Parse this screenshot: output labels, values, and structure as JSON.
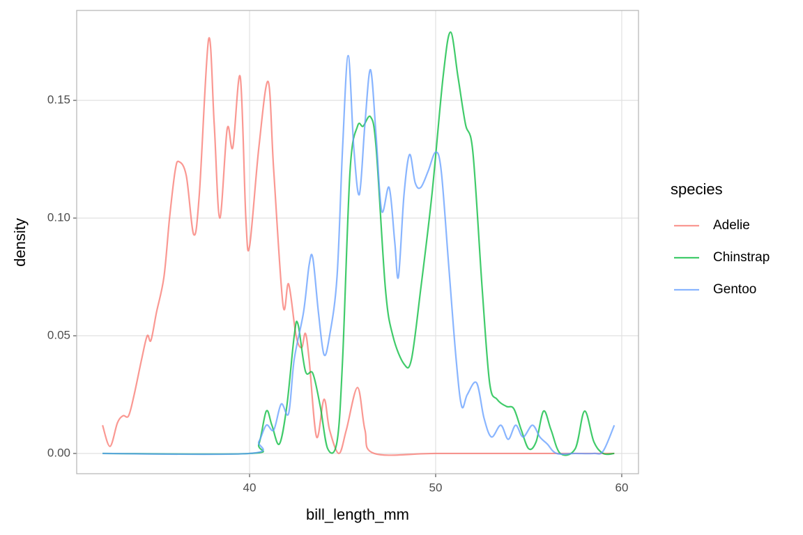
{
  "chart_data": {
    "type": "line",
    "x_label": "bill_length_mm",
    "y_label": "density",
    "legend_title": "species",
    "xlim": [
      30.71,
      60.9
    ],
    "ylim": [
      -0.0086,
      0.1882
    ],
    "xticks": [
      40,
      50,
      60
    ],
    "yticks": [
      {
        "value": 0,
        "label": "0.00"
      },
      {
        "value": 0.05,
        "label": "0.05"
      },
      {
        "value": 0.1,
        "label": "0.10"
      },
      {
        "value": 0.15,
        "label": "0.15"
      }
    ],
    "grid": true,
    "legend": "right",
    "series": [
      {
        "name": "Adelie",
        "color": "#F8766D",
        "x": [
          32.1,
          32.5,
          32.9,
          33.2,
          33.5,
          33.8,
          34.2,
          34.5,
          34.7,
          35.0,
          35.4,
          35.7,
          36.0,
          36.2,
          36.6,
          37.0,
          37.3,
          37.8,
          38.1,
          38.4,
          38.8,
          39.1,
          39.5,
          39.8,
          40.0,
          40.5,
          41.0,
          41.3,
          41.8,
          42.1,
          42.5,
          42.8,
          43.0,
          43.2,
          43.6,
          44.0,
          44.3,
          44.8,
          45.2,
          45.8,
          46.2,
          46.7,
          50,
          55,
          59.6
        ],
        "values": [
          0.012,
          0.003,
          0.013,
          0.016,
          0.016,
          0.025,
          0.04,
          0.05,
          0.048,
          0.06,
          0.075,
          0.1,
          0.12,
          0.124,
          0.118,
          0.093,
          0.11,
          0.176,
          0.14,
          0.1,
          0.138,
          0.13,
          0.16,
          0.1,
          0.088,
          0.13,
          0.158,
          0.12,
          0.063,
          0.072,
          0.05,
          0.045,
          0.051,
          0.04,
          0.007,
          0.023,
          0.01,
          0.0,
          0.01,
          0.028,
          0.01,
          0.0,
          0,
          0,
          0
        ]
      },
      {
        "name": "Chinstrap",
        "color": "#00BA38",
        "x": [
          32.1,
          40,
          40.5,
          40.9,
          41.2,
          41.6,
          42.0,
          42.4,
          42.6,
          43.0,
          43.4,
          43.8,
          44.2,
          44.7,
          45.0,
          45.4,
          45.8,
          46.1,
          46.5,
          46.8,
          47.3,
          47.7,
          48.3,
          48.7,
          49.2,
          49.8,
          50.4,
          50.8,
          51.2,
          51.6,
          52.0,
          52.5,
          52.9,
          53.3,
          53.8,
          54.2,
          54.6,
          55.0,
          55.4,
          55.8,
          56.2,
          56.7,
          57.5,
          58.0,
          58.5,
          59.0,
          59.6
        ],
        "values": [
          0,
          0,
          0.004,
          0.018,
          0.012,
          0.004,
          0.02,
          0.05,
          0.055,
          0.035,
          0.034,
          0.02,
          0.002,
          0.005,
          0.04,
          0.12,
          0.139,
          0.139,
          0.143,
          0.13,
          0.07,
          0.05,
          0.038,
          0.04,
          0.07,
          0.11,
          0.16,
          0.179,
          0.16,
          0.14,
          0.128,
          0.07,
          0.03,
          0.023,
          0.02,
          0.019,
          0.01,
          0.002,
          0.005,
          0.018,
          0.01,
          0.0,
          0.002,
          0.018,
          0.005,
          0.0,
          0.0
        ]
      },
      {
        "name": "Gentoo",
        "color": "#619CFF",
        "x": [
          32.1,
          40,
          40.5,
          40.9,
          41.3,
          41.7,
          42.1,
          42.4,
          42.9,
          43.2,
          43.4,
          43.7,
          44.0,
          44.3,
          44.7,
          45.0,
          45.3,
          45.6,
          45.9,
          46.2,
          46.5,
          46.8,
          47.1,
          47.5,
          47.8,
          48.0,
          48.3,
          48.6,
          48.9,
          49.2,
          49.6,
          50.0,
          50.3,
          50.7,
          51.1,
          51.4,
          51.7,
          52.2,
          52.6,
          53.0,
          53.5,
          53.9,
          54.3,
          54.7,
          55.2,
          55.6,
          56.0,
          56.5,
          57.5,
          58.5,
          59.0,
          59.6
        ],
        "values": [
          0,
          0,
          0.005,
          0.012,
          0.01,
          0.021,
          0.017,
          0.04,
          0.06,
          0.08,
          0.083,
          0.06,
          0.042,
          0.05,
          0.075,
          0.13,
          0.169,
          0.13,
          0.11,
          0.14,
          0.163,
          0.135,
          0.103,
          0.113,
          0.09,
          0.075,
          0.11,
          0.127,
          0.115,
          0.113,
          0.12,
          0.128,
          0.12,
          0.08,
          0.04,
          0.02,
          0.025,
          0.03,
          0.015,
          0.007,
          0.012,
          0.006,
          0.012,
          0.007,
          0.012,
          0.007,
          0.004,
          0.0,
          0.0,
          0.0,
          0.001,
          0.012
        ]
      }
    ]
  }
}
